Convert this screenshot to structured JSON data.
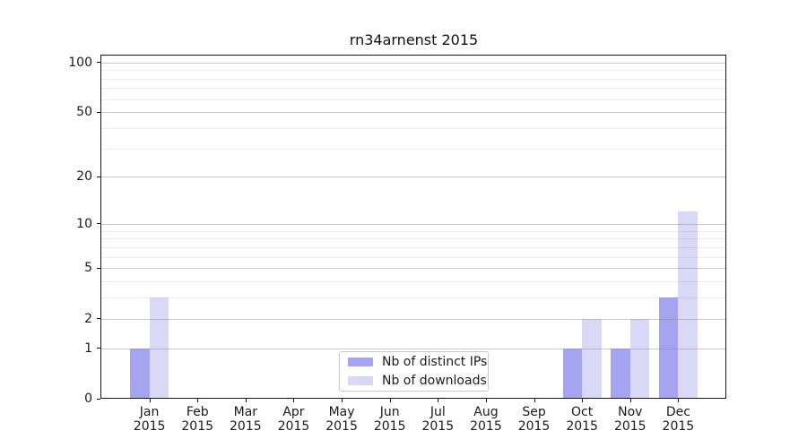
{
  "title": "rn34arnenst 2015",
  "chart_data": {
    "type": "bar",
    "title": "rn34arnenst 2015",
    "categories": [
      "Jan",
      "Feb",
      "Mar",
      "Apr",
      "May",
      "Jun",
      "Jul",
      "Aug",
      "Sep",
      "Oct",
      "Nov",
      "Dec"
    ],
    "x_year_label": "2015",
    "series": [
      {
        "name": "Nb of distinct IPs",
        "color": "#a4a4f0",
        "values": [
          1,
          0,
          0,
          0,
          0,
          0,
          0,
          0,
          0,
          1,
          1,
          3
        ]
      },
      {
        "name": "Nb of downloads",
        "color": "#d9d9f7",
        "values": [
          3,
          0,
          0,
          0,
          0,
          0,
          0,
          0,
          0,
          2,
          2,
          12
        ]
      }
    ],
    "y_axis": {
      "scale": "log1p",
      "major_ticks": [
        0,
        1,
        2,
        5,
        10,
        20,
        50,
        100
      ],
      "minor_gridline_values": [
        3,
        4,
        6,
        7,
        8,
        9,
        30,
        40,
        60,
        70,
        80,
        90
      ],
      "max": 110
    },
    "xlabel": "",
    "ylabel": "",
    "legend_position": "lower-center",
    "grid": "on",
    "background_color": "#ffffff",
    "spine_color": "#151515"
  }
}
